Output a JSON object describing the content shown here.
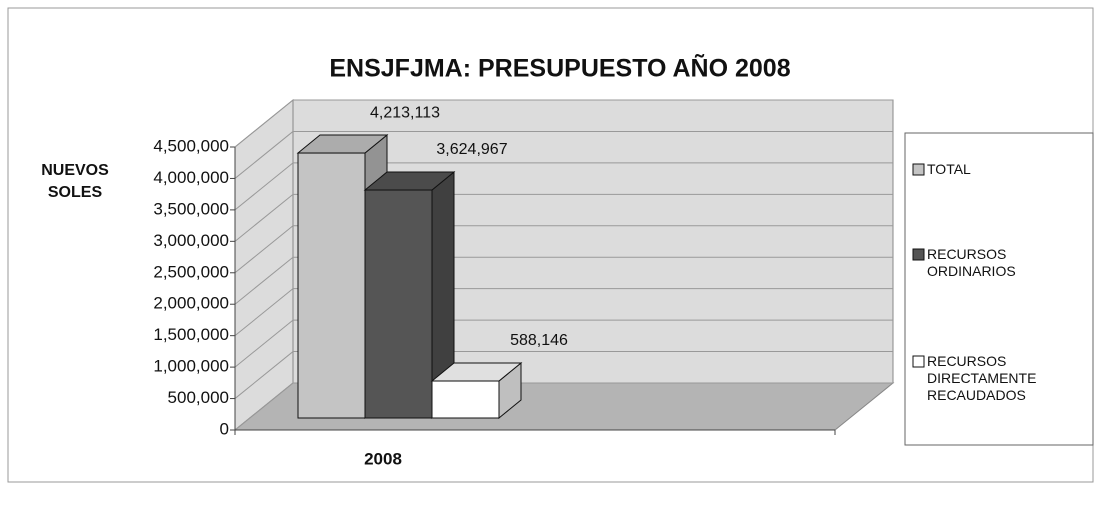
{
  "chart_data": {
    "type": "bar3d",
    "title": "ENSJFJMA: PRESUPUESTO AÑO 2008",
    "ylabel": "NUEVOS SOLES",
    "categories": [
      "2008"
    ],
    "series": [
      {
        "name": "TOTAL",
        "color": "#c4c4c4",
        "values": [
          4213113
        ],
        "value_labels": [
          "4,213,113"
        ]
      },
      {
        "name": "RECURSOS ORDINARIOS",
        "color": "#555555",
        "values": [
          3624967
        ],
        "value_labels": [
          "3,624,967"
        ]
      },
      {
        "name": "RECURSOS DIRECTAMENTE RECAUDADOS",
        "color": "#ffffff",
        "values": [
          588146
        ],
        "value_labels": [
          "588,146"
        ]
      }
    ],
    "ylim": [
      0,
      4500000
    ],
    "yticks": [
      0,
      {
        "value": 500000,
        "label": "500,000"
      },
      {
        "value": 1000000,
        "label": "1,000,000"
      },
      {
        "value": 1500000,
        "label": "1,500,000"
      },
      {
        "value": 2000000,
        "label": "2,000,000"
      },
      {
        "value": 2500000,
        "label": "2,500,000"
      },
      {
        "value": 3000000,
        "label": "3,000,000"
      },
      {
        "value": 3500000,
        "label": "3,500,000"
      },
      {
        "value": 4000000,
        "label": "4,000,000"
      },
      {
        "value": 4500000,
        "label": "4,500,000"
      }
    ],
    "grid": true,
    "legend": "right"
  }
}
